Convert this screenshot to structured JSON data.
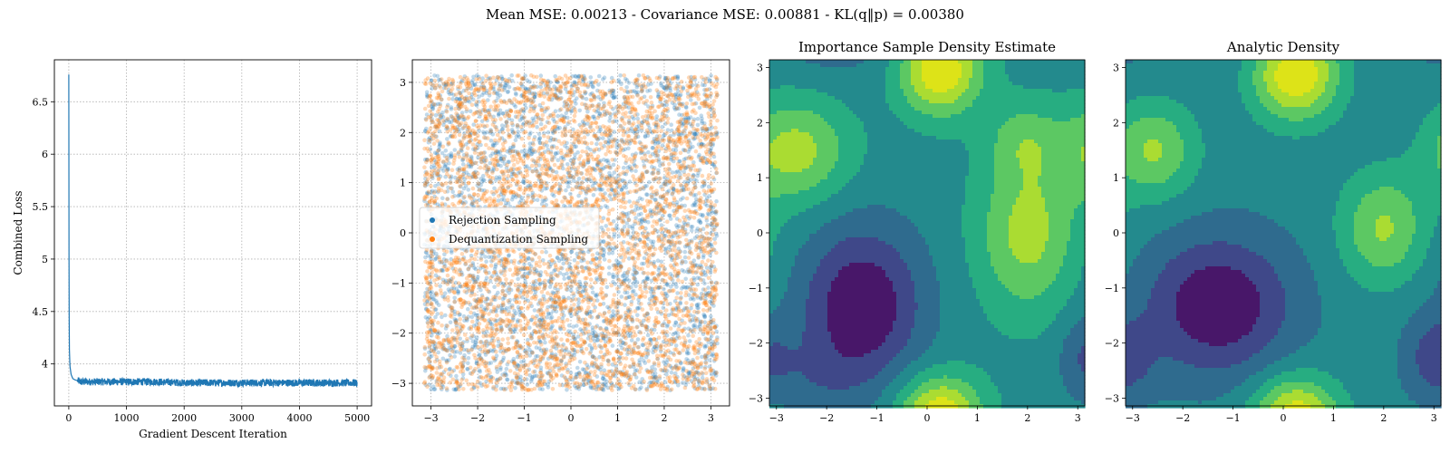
{
  "suptitle": "Mean MSE: 0.00213 - Covariance MSE: 0.00881 - KL(q‖p) = 0.00380",
  "chart_data": [
    {
      "type": "line",
      "title": "",
      "xlabel": "Gradient Descent Iteration",
      "ylabel": "Combined Loss",
      "xlim": [
        -250,
        5250
      ],
      "ylim": [
        3.6,
        6.9
      ],
      "xticks": [
        0,
        1000,
        2000,
        3000,
        4000,
        5000
      ],
      "yticks": [
        4.0,
        4.5,
        5.0,
        5.5,
        6.0,
        6.5
      ],
      "grid": true,
      "color": "#1f77b4",
      "series": [
        {
          "x": [
            0,
            2,
            5,
            10,
            20,
            40,
            70,
            100,
            150,
            200,
            300,
            400,
            500,
            750,
            1000,
            1500,
            2000,
            2500,
            3000,
            3500,
            4000,
            4500,
            5000
          ],
          "y": [
            6.76,
            5.6,
            4.6,
            4.15,
            3.98,
            3.9,
            3.86,
            3.85,
            3.84,
            3.83,
            3.83,
            3.83,
            3.83,
            3.83,
            3.83,
            3.83,
            3.82,
            3.82,
            3.82,
            3.82,
            3.82,
            3.82,
            3.82
          ]
        }
      ],
      "noise_band": 0.035
    },
    {
      "type": "scatter",
      "title": "",
      "xlim": [
        -3.4,
        3.4
      ],
      "ylim": [
        -3.45,
        3.45
      ],
      "xticks": [
        -3,
        -2,
        -1,
        0,
        1,
        2,
        3
      ],
      "yticks": [
        -3,
        -2,
        -1,
        0,
        1,
        2,
        3
      ],
      "grid": true,
      "legend_position": "center-left",
      "series": [
        {
          "name": "Rejection Sampling",
          "color": "#1f77b4",
          "n_points": 3500,
          "range": [
            -3.14,
            3.14
          ]
        },
        {
          "name": "Dequantization Sampling",
          "color": "#ff7f0e",
          "n_points": 4000,
          "range": [
            -3.14,
            3.14
          ]
        }
      ]
    },
    {
      "type": "heatmap",
      "title": "Importance Sample Density Estimate",
      "xlim": [
        -3.14,
        3.14
      ],
      "ylim": [
        -3.14,
        3.14
      ],
      "xticks": [
        -3,
        -2,
        -1,
        0,
        1,
        2,
        3
      ],
      "yticks": [
        -3,
        -2,
        -1,
        0,
        1,
        2,
        3
      ],
      "colormap": "viridis",
      "levels": 8,
      "peaks": [
        {
          "x": -2.6,
          "y": 1.5,
          "amp": 1.0,
          "sx": 0.75,
          "sy": 0.65
        },
        {
          "x": 0.25,
          "y": 2.8,
          "amp": 0.85,
          "sx": 0.55,
          "sy": 0.55
        },
        {
          "x": 0.25,
          "y": -3.2,
          "amp": 0.8,
          "sx": 0.6,
          "sy": 0.5
        },
        {
          "x": 2.0,
          "y": 0.0,
          "amp": 1.0,
          "sx": 0.7,
          "sy": 1.0
        },
        {
          "x": 1.9,
          "y": 1.7,
          "amp": 0.55,
          "sx": 0.5,
          "sy": 0.5
        },
        {
          "x": -1.3,
          "y": -1.3,
          "amp": -1.25,
          "sx": 0.85,
          "sy": 1.0
        },
        {
          "x": -2.3,
          "y": -2.6,
          "amp": -0.3,
          "sx": 0.7,
          "sy": 0.5
        },
        {
          "x": 3.1,
          "y": -2.2,
          "amp": -0.45,
          "sx": 0.35,
          "sy": 0.5
        }
      ]
    },
    {
      "type": "heatmap",
      "title": "Analytic Density",
      "xlim": [
        -3.14,
        3.14
      ],
      "ylim": [
        -3.14,
        3.14
      ],
      "xticks": [
        -3,
        -2,
        -1,
        0,
        1,
        2,
        3
      ],
      "yticks": [
        -3,
        -2,
        -1,
        0,
        1,
        2,
        3
      ],
      "colormap": "viridis",
      "levels": 8,
      "peaks": [
        {
          "x": -2.6,
          "y": 1.5,
          "amp": 1.0,
          "sx": 0.6,
          "sy": 0.6
        },
        {
          "x": 0.25,
          "y": 2.7,
          "amp": 1.0,
          "sx": 0.6,
          "sy": 0.55
        },
        {
          "x": 0.25,
          "y": -3.2,
          "amp": 0.8,
          "sx": 0.6,
          "sy": 0.5
        },
        {
          "x": 2.0,
          "y": 0.1,
          "amp": 1.0,
          "sx": 0.6,
          "sy": 0.7
        },
        {
          "x": -1.3,
          "y": -1.3,
          "amp": -1.2,
          "sx": 1.0,
          "sy": 0.85
        },
        {
          "x": 3.0,
          "y": -2.2,
          "amp": -0.45,
          "sx": 0.4,
          "sy": 0.5
        },
        {
          "x": -3.1,
          "y": -2.4,
          "amp": -0.25,
          "sx": 0.5,
          "sy": 0.5
        }
      ]
    }
  ]
}
